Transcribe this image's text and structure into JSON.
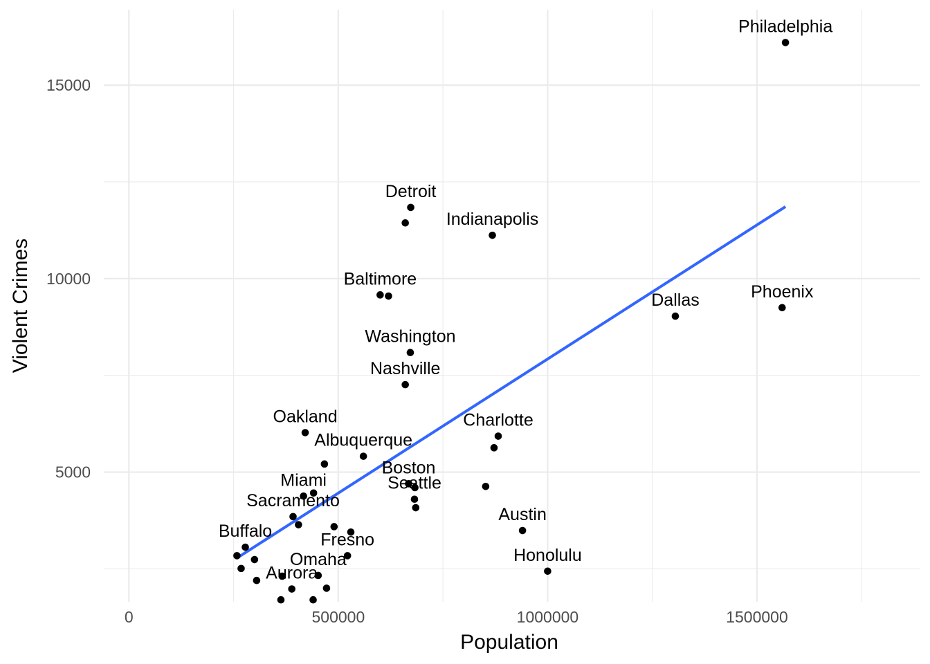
{
  "chart_data": {
    "type": "scatter",
    "xlabel": "Population",
    "ylabel": "Violent Crimes",
    "xlim": [
      -60000,
      1890000
    ],
    "ylim": [
      1650,
      16950
    ],
    "x_ticks": [
      0,
      500000,
      1000000,
      1500000
    ],
    "x_tick_labels": [
      "0",
      "500000",
      "1000000",
      "1500000"
    ],
    "x_minor_ticks": [
      250000,
      750000,
      1250000,
      1750000
    ],
    "y_ticks": [
      5000,
      10000,
      15000
    ],
    "y_tick_labels": [
      "5000",
      "10000",
      "15000"
    ],
    "y_minor_ticks": [
      2500,
      7500,
      12500
    ],
    "grid": true,
    "trend_line": {
      "x": [
        258000,
        1568000
      ],
      "y": [
        2780,
        11860
      ],
      "color": "#3366ff"
    },
    "colors": {
      "point": "#000000",
      "grid": "#ebebeb",
      "axis_text": "#4d4d4d"
    },
    "points": [
      {
        "x": 1568000,
        "y": 16100,
        "label": "Philadelphia"
      },
      {
        "x": 1560000,
        "y": 9250,
        "label": "Phoenix"
      },
      {
        "x": 1305000,
        "y": 9030,
        "label": "Dallas"
      },
      {
        "x": 1000000,
        "y": 2440,
        "label": "Honolulu"
      },
      {
        "x": 940000,
        "y": 3490,
        "label": "Austin"
      },
      {
        "x": 882000,
        "y": 5930,
        "label": "Charlotte"
      },
      {
        "x": 872000,
        "y": 5630,
        "label": ""
      },
      {
        "x": 868000,
        "y": 11120,
        "label": "Indianapolis"
      },
      {
        "x": 852000,
        "y": 4630,
        "label": ""
      },
      {
        "x": 673000,
        "y": 11840,
        "label": "Detroit"
      },
      {
        "x": 660000,
        "y": 11440,
        "label": ""
      },
      {
        "x": 672000,
        "y": 8090,
        "label": "Washington"
      },
      {
        "x": 660000,
        "y": 7260,
        "label": "Nashville"
      },
      {
        "x": 600000,
        "y": 9580,
        "label": "Baltimore"
      },
      {
        "x": 620000,
        "y": 9550,
        "label": ""
      },
      {
        "x": 668000,
        "y": 4700,
        "label": "Boston"
      },
      {
        "x": 683000,
        "y": 4600,
        "label": ""
      },
      {
        "x": 682000,
        "y": 4300,
        "label": "Seattle"
      },
      {
        "x": 685000,
        "y": 4080,
        "label": ""
      },
      {
        "x": 560000,
        "y": 5410,
        "label": "Albuquerque"
      },
      {
        "x": 467000,
        "y": 5210,
        "label": ""
      },
      {
        "x": 421000,
        "y": 6020,
        "label": "Oakland"
      },
      {
        "x": 417000,
        "y": 4380,
        "label": "Miami"
      },
      {
        "x": 441000,
        "y": 4460,
        "label": ""
      },
      {
        "x": 392000,
        "y": 3850,
        "label": "Sacramento"
      },
      {
        "x": 405000,
        "y": 3640,
        "label": ""
      },
      {
        "x": 490000,
        "y": 3590,
        "label": ""
      },
      {
        "x": 530000,
        "y": 3450,
        "label": ""
      },
      {
        "x": 522000,
        "y": 2840,
        "label": "Fresno"
      },
      {
        "x": 278000,
        "y": 3060,
        "label": "Buffalo"
      },
      {
        "x": 258000,
        "y": 2840,
        "label": ""
      },
      {
        "x": 300000,
        "y": 2740,
        "label": ""
      },
      {
        "x": 268000,
        "y": 2510,
        "label": ""
      },
      {
        "x": 452000,
        "y": 2330,
        "label": "Omaha"
      },
      {
        "x": 366000,
        "y": 2310,
        "label": ""
      },
      {
        "x": 305000,
        "y": 2200,
        "label": ""
      },
      {
        "x": 389000,
        "y": 1980,
        "label": "Aurora"
      },
      {
        "x": 472000,
        "y": 2000,
        "label": ""
      },
      {
        "x": 363000,
        "y": 1700,
        "label": ""
      },
      {
        "x": 440000,
        "y": 1700,
        "label": ""
      }
    ]
  }
}
